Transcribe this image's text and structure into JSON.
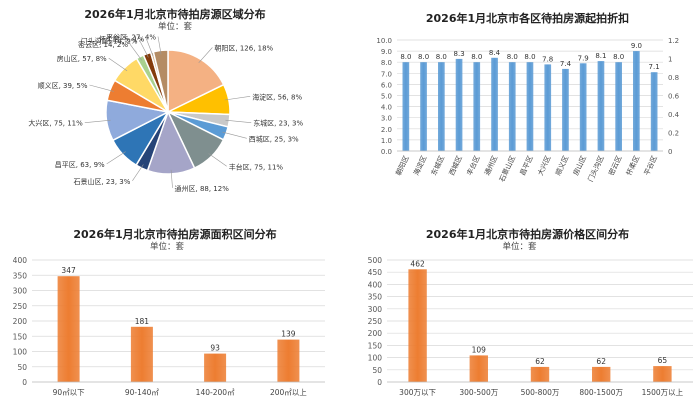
{
  "chart_data": [
    {
      "type": "pie",
      "title": "2026年1月北京市待拍房源区域分布",
      "subtitle": "单位：套",
      "slices": [
        {
          "name": "朝阳区",
          "value": 126,
          "pct": "18%",
          "label": "朝阳区, 126, 18%",
          "color": "#F4B183"
        },
        {
          "name": "海淀区",
          "value": 56,
          "pct": "8%",
          "label": "海淀区, 56, 8%",
          "color": "#FFC000"
        },
        {
          "name": "东城区",
          "value": 23,
          "pct": "3%",
          "label": "东城区, 23, 3%",
          "color": "#C9C9C9"
        },
        {
          "name": "西城区",
          "value": 25,
          "pct": "3%",
          "label": "西城区, 25, 3%",
          "color": "#5B9BD5"
        },
        {
          "name": "丰台区",
          "value": 75,
          "pct": "11%",
          "label": "丰台区, 75, 11%",
          "color": "#7F8F8F"
        },
        {
          "name": "通州区",
          "value": 88,
          "pct": "12%",
          "label": "通州区, 88, 12%",
          "color": "#A5A5C8"
        },
        {
          "name": "石景山区",
          "value": 23,
          "pct": "3%",
          "label": "石景山区, 23, 3%",
          "color": "#264478"
        },
        {
          "name": "昌平区",
          "value": 63,
          "pct": "9%",
          "label": "昌平区, 63, 9%",
          "color": "#2E75B6"
        },
        {
          "name": "大兴区",
          "value": 75,
          "pct": "11%",
          "label": "大兴区, 75, 11%",
          "color": "#8FAADC"
        },
        {
          "name": "顺义区",
          "value": 39,
          "pct": "5%",
          "label": "顺义区, 39, 5%",
          "color": "#ED7D31"
        },
        {
          "name": "房山区",
          "value": 57,
          "pct": "8%",
          "label": "房山区, 57, 8%",
          "color": "#FFD966"
        },
        {
          "name": "密云区",
          "value": 14,
          "pct": "2%",
          "label": "密云区, 14, 2%",
          "color": "#A9D18E"
        },
        {
          "name": "门头沟区",
          "value": 14,
          "pct": "2%",
          "label": "门头沟区, 14, 2%",
          "color": "#843C0C"
        },
        {
          "name": "怀柔区",
          "value": 5,
          "pct": "1%",
          "label": "怀柔区, 5, 1%",
          "color": "#D6B48C"
        },
        {
          "name": "平谷区",
          "value": 27,
          "pct": "4%",
          "label": "平谷区, 27, 4%",
          "color": "#B48C64"
        }
      ]
    },
    {
      "type": "bar",
      "title": "2026年1月北京市各区待拍房源起拍折扣",
      "categories": [
        "朝阳区",
        "海淀区",
        "东城区",
        "西城区",
        "丰台区",
        "通州区",
        "石景山区",
        "昌平区",
        "大兴区",
        "顺义区",
        "房山区",
        "门头沟区",
        "密云区",
        "怀柔区",
        "平谷区"
      ],
      "values": [
        8.0,
        8.0,
        8.0,
        8.3,
        8.0,
        8.4,
        8.0,
        8.0,
        7.8,
        7.4,
        7.9,
        8.1,
        8.0,
        9.0,
        7.1
      ],
      "value_labels": [
        "8.0",
        "8.0",
        "8.0",
        "8.3",
        "8.0",
        "8.4",
        "8.0",
        "8.0",
        "7.8",
        "7.4",
        "7.9",
        "8.1",
        "8.0",
        "9.0",
        "7.1"
      ],
      "ylim": [
        0,
        10
      ],
      "yticks": [
        "0.0",
        "1.0",
        "2.0",
        "3.0",
        "4.0",
        "5.0",
        "6.0",
        "7.0",
        "8.0",
        "9.0",
        "10.0"
      ],
      "y2ticks": [
        "0",
        "0.2",
        "0.4",
        "0.6",
        "0.8",
        "1",
        "1.2"
      ],
      "color": "#5B9BD5",
      "grid": true
    },
    {
      "type": "bar",
      "title": "2026年1月北京市待拍房源面积区间分布",
      "subtitle": "单位：套",
      "categories": [
        "90㎡以下",
        "90-140㎡",
        "140-200㎡",
        "200㎡以上"
      ],
      "values": [
        347,
        181,
        93,
        139
      ],
      "ylim": [
        0,
        400
      ],
      "yticks": [
        "0",
        "50",
        "100",
        "150",
        "200",
        "250",
        "300",
        "350",
        "400"
      ],
      "color": "#ED7D31",
      "grid": true
    },
    {
      "type": "bar",
      "title": "2026年1月北京市待拍房源价格区间分布",
      "subtitle": "单位：套",
      "categories": [
        "300万以下",
        "300-500万",
        "500-800万",
        "800-1500万",
        "1500万以上"
      ],
      "values": [
        462,
        109,
        62,
        62,
        65
      ],
      "ylim": [
        0,
        500
      ],
      "yticks": [
        "0",
        "50",
        "100",
        "150",
        "200",
        "250",
        "300",
        "350",
        "400",
        "450",
        "500"
      ],
      "color": "#ED7D31",
      "grid": true
    }
  ]
}
